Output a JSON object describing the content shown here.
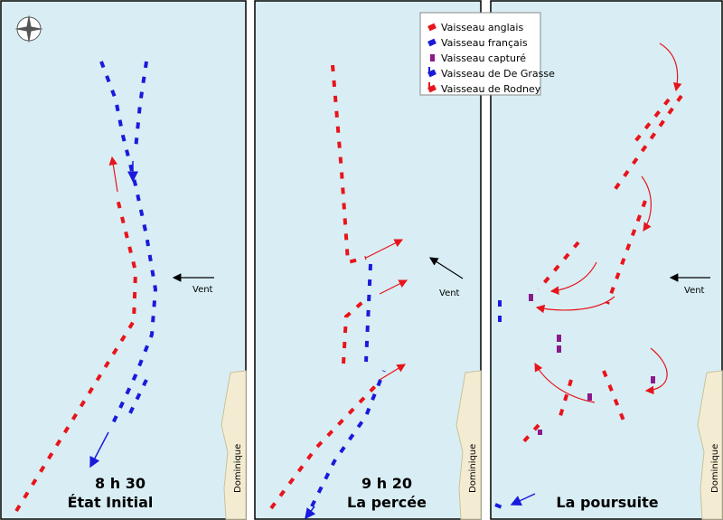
{
  "panels": [
    {
      "time": "8 h 30",
      "title": "État Initial",
      "wind": "Vent",
      "island": "Dominique"
    },
    {
      "time": "9 h 20",
      "title": "La percée",
      "wind": "Vent",
      "island": "Dominique"
    },
    {
      "title": "La poursuite",
      "wind": "Vent",
      "island": "Dominique"
    }
  ],
  "legend": [
    {
      "label": "Vaisseau anglais",
      "color": "#e8141b"
    },
    {
      "label": "Vaisseau français",
      "color": "#1a1adc"
    },
    {
      "label": "Vaisseau capturé",
      "color": "#8b1a8b"
    },
    {
      "label": "Vaisseau de De Grasse",
      "color": "#1a1adc"
    },
    {
      "label": "Vaisseau de Rodney",
      "color": "#e8141b"
    }
  ]
}
